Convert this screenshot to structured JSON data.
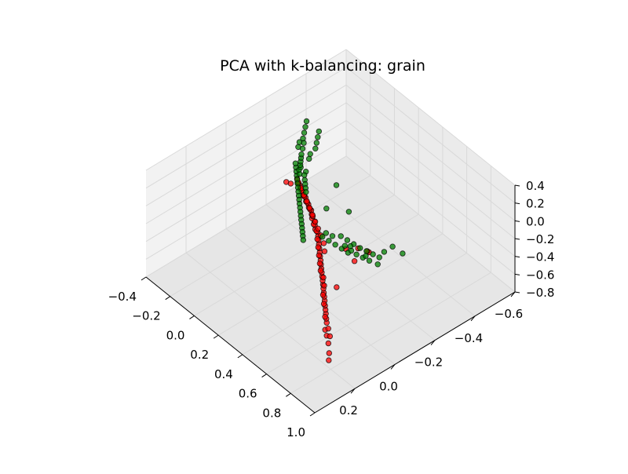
{
  "chart_data": {
    "type": "scatter",
    "projection": "3d",
    "title": "PCA with k-balancing: grain",
    "xlabel": "",
    "ylabel": "",
    "zlabel": "",
    "xlim": [
      -0.4,
      1.0
    ],
    "ylim": [
      -0.6,
      0.4
    ],
    "zlim": [
      -0.8,
      0.4
    ],
    "x_ticks": [
      "−0.4",
      "−0.2",
      "0.0",
      "0.2",
      "0.4",
      "0.6",
      "0.8",
      "1.0"
    ],
    "y_ticks": [
      "−0.6",
      "−0.4",
      "−0.2",
      "0.0",
      "0.2"
    ],
    "z_ticks": [
      "−0.8",
      "−0.6",
      "−0.4",
      "−0.2",
      "0.0",
      "0.2",
      "0.4"
    ],
    "grid": true,
    "series": [
      {
        "color": "#ff0000",
        "points": [
          [
            0.95,
            0.3,
            -0.4
          ],
          [
            0.92,
            0.28,
            -0.38
          ],
          [
            0.88,
            0.26,
            -0.34
          ],
          [
            0.85,
            0.25,
            -0.3
          ],
          [
            0.82,
            0.24,
            -0.28
          ],
          [
            0.8,
            0.22,
            -0.25
          ],
          [
            0.78,
            0.21,
            -0.24
          ],
          [
            0.76,
            0.2,
            -0.22
          ],
          [
            0.74,
            0.19,
            -0.21
          ],
          [
            0.72,
            0.18,
            -0.2
          ],
          [
            0.7,
            0.17,
            -0.18
          ],
          [
            0.68,
            0.16,
            -0.17
          ],
          [
            0.66,
            0.15,
            -0.16
          ],
          [
            0.64,
            0.14,
            -0.15
          ],
          [
            0.62,
            0.13,
            -0.14
          ],
          [
            0.6,
            0.12,
            -0.13
          ],
          [
            0.58,
            0.11,
            -0.12
          ],
          [
            0.56,
            0.1,
            -0.11
          ],
          [
            0.54,
            0.09,
            -0.1
          ],
          [
            0.52,
            0.08,
            -0.09
          ],
          [
            0.5,
            0.07,
            -0.08
          ],
          [
            0.48,
            0.06,
            -0.07
          ],
          [
            0.46,
            0.05,
            -0.06
          ],
          [
            0.44,
            0.04,
            -0.05
          ],
          [
            0.42,
            0.03,
            -0.04
          ],
          [
            0.4,
            0.02,
            -0.03
          ],
          [
            0.38,
            0.01,
            -0.02
          ],
          [
            0.36,
            0.0,
            -0.01
          ],
          [
            0.34,
            0.0,
            0.0
          ],
          [
            0.32,
            -0.01,
            0.01
          ],
          [
            0.3,
            -0.02,
            0.02
          ],
          [
            0.28,
            -0.02,
            0.03
          ],
          [
            0.26,
            -0.03,
            0.04
          ],
          [
            0.24,
            -0.04,
            0.05
          ],
          [
            0.22,
            -0.04,
            0.06
          ],
          [
            0.2,
            -0.05,
            0.06
          ],
          [
            0.18,
            -0.05,
            0.07
          ],
          [
            0.16,
            -0.06,
            0.08
          ],
          [
            0.14,
            -0.06,
            0.08
          ],
          [
            0.12,
            -0.07,
            0.09
          ],
          [
            0.1,
            -0.07,
            0.1
          ],
          [
            0.08,
            -0.08,
            0.1
          ],
          [
            0.06,
            -0.08,
            0.11
          ],
          [
            0.04,
            -0.09,
            0.12
          ],
          [
            0.86,
            0.24,
            -0.31
          ],
          [
            0.83,
            0.23,
            -0.27
          ],
          [
            0.77,
            0.21,
            -0.23
          ],
          [
            0.71,
            0.18,
            -0.19
          ],
          [
            0.67,
            0.16,
            -0.16
          ],
          [
            0.63,
            0.13,
            -0.14
          ],
          [
            0.59,
            0.11,
            -0.12
          ],
          [
            0.55,
            0.1,
            -0.1
          ],
          [
            0.51,
            0.08,
            -0.09
          ],
          [
            0.47,
            0.06,
            -0.07
          ],
          [
            0.43,
            0.04,
            -0.05
          ],
          [
            0.39,
            0.02,
            -0.03
          ],
          [
            0.35,
            0.0,
            -0.01
          ],
          [
            0.31,
            -0.01,
            0.01
          ],
          [
            0.27,
            -0.03,
            0.03
          ],
          [
            0.23,
            -0.04,
            0.05
          ],
          [
            0.19,
            -0.05,
            0.07
          ],
          [
            0.15,
            -0.06,
            0.08
          ],
          [
            0.11,
            -0.07,
            0.09
          ],
          [
            0.07,
            -0.08,
            0.11
          ],
          [
            0.45,
            0.02,
            -0.1
          ],
          [
            0.41,
            0.0,
            -0.08
          ],
          [
            0.37,
            -0.01,
            -0.05
          ],
          [
            0.33,
            -0.02,
            -0.03
          ],
          [
            0.29,
            -0.03,
            -0.01
          ],
          [
            0.25,
            -0.04,
            0.01
          ],
          [
            0.21,
            -0.05,
            0.03
          ],
          [
            0.17,
            -0.06,
            0.05
          ],
          [
            0.13,
            -0.07,
            0.06
          ],
          [
            0.09,
            -0.08,
            0.08
          ],
          [
            0.05,
            -0.09,
            0.09
          ],
          [
            0.3,
            -0.22,
            -0.7
          ],
          [
            0.28,
            -0.25,
            -0.62
          ],
          [
            0.26,
            -0.2,
            -0.58
          ],
          [
            0.32,
            -0.28,
            -0.66
          ],
          [
            0.34,
            -0.26,
            -0.6
          ],
          [
            0.0,
            -0.06,
            0.08
          ],
          [
            0.02,
            -0.07,
            0.07
          ],
          [
            0.6,
            0.05,
            -0.3
          ]
        ]
      },
      {
        "color": "#008000",
        "points": [
          [
            0.02,
            -0.1,
            0.12
          ],
          [
            0.0,
            -0.11,
            0.13
          ],
          [
            -0.02,
            -0.12,
            0.14
          ],
          [
            -0.04,
            -0.13,
            0.15
          ],
          [
            0.04,
            -0.09,
            0.11
          ],
          [
            0.06,
            -0.08,
            0.1
          ],
          [
            0.08,
            -0.07,
            0.09
          ],
          [
            0.1,
            -0.06,
            0.08
          ],
          [
            0.12,
            -0.05,
            0.07
          ],
          [
            0.14,
            -0.04,
            0.06
          ],
          [
            0.16,
            -0.03,
            0.05
          ],
          [
            0.18,
            -0.02,
            0.04
          ],
          [
            0.2,
            -0.01,
            0.03
          ],
          [
            0.22,
            0.0,
            0.02
          ],
          [
            0.24,
            0.01,
            0.01
          ],
          [
            0.26,
            0.02,
            0.0
          ],
          [
            0.28,
            0.03,
            -0.01
          ],
          [
            0.3,
            0.04,
            -0.02
          ],
          [
            0.32,
            0.05,
            -0.03
          ],
          [
            0.34,
            0.06,
            -0.04
          ],
          [
            0.01,
            -0.12,
            0.1
          ],
          [
            -0.01,
            -0.13,
            0.11
          ],
          [
            0.03,
            -0.14,
            0.12
          ],
          [
            0.05,
            -0.12,
            0.13
          ],
          [
            0.07,
            -0.11,
            0.11
          ],
          [
            0.09,
            -0.1,
            0.1
          ],
          [
            0.11,
            -0.09,
            0.09
          ],
          [
            0.13,
            -0.08,
            0.08
          ],
          [
            -0.03,
            -0.15,
            0.09
          ],
          [
            -0.05,
            -0.16,
            0.08
          ],
          [
            -0.08,
            -0.18,
            0.06
          ],
          [
            -0.11,
            -0.2,
            0.04
          ],
          [
            -0.14,
            -0.22,
            0.02
          ],
          [
            -0.18,
            -0.25,
            0.0
          ],
          [
            -0.22,
            -0.28,
            -0.02
          ],
          [
            -0.26,
            -0.3,
            -0.04
          ],
          [
            -0.3,
            -0.33,
            -0.06
          ],
          [
            -0.34,
            -0.36,
            -0.08
          ],
          [
            -0.38,
            -0.39,
            -0.1
          ],
          [
            -0.24,
            -0.35,
            -0.2
          ],
          [
            -0.28,
            -0.38,
            -0.22
          ],
          [
            -0.32,
            -0.41,
            -0.24
          ],
          [
            -0.36,
            -0.44,
            -0.26
          ],
          [
            -0.3,
            -0.3,
            -0.18
          ],
          [
            -0.34,
            -0.33,
            -0.21
          ],
          [
            -0.2,
            -0.3,
            -0.15
          ],
          [
            -0.16,
            -0.27,
            -0.12
          ],
          [
            0.2,
            -0.12,
            -0.4
          ],
          [
            0.22,
            -0.14,
            -0.45
          ],
          [
            0.24,
            -0.16,
            -0.5
          ],
          [
            0.26,
            -0.18,
            -0.55
          ],
          [
            0.28,
            -0.2,
            -0.6
          ],
          [
            0.3,
            -0.23,
            -0.64
          ],
          [
            0.32,
            -0.25,
            -0.68
          ],
          [
            0.34,
            -0.27,
            -0.72
          ],
          [
            0.22,
            -0.2,
            -0.48
          ],
          [
            0.24,
            -0.22,
            -0.53
          ],
          [
            0.26,
            -0.24,
            -0.58
          ],
          [
            0.28,
            -0.26,
            -0.63
          ],
          [
            0.3,
            -0.28,
            -0.67
          ],
          [
            0.32,
            -0.3,
            -0.71
          ],
          [
            0.18,
            -0.15,
            -0.42
          ],
          [
            0.2,
            -0.17,
            -0.46
          ],
          [
            0.34,
            -0.32,
            -0.75
          ],
          [
            0.36,
            -0.3,
            -0.78
          ],
          [
            0.29,
            -0.21,
            -0.58
          ],
          [
            0.27,
            -0.19,
            -0.52
          ],
          [
            0.25,
            -0.23,
            -0.6
          ],
          [
            0.31,
            -0.27,
            -0.7
          ],
          [
            0.33,
            -0.35,
            -0.74
          ],
          [
            0.35,
            -0.38,
            -0.7
          ],
          [
            0.1,
            -0.2,
            -0.3
          ],
          [
            0.12,
            -0.3,
            -0.45
          ],
          [
            0.4,
            -0.4,
            -0.75
          ],
          [
            0.05,
            -0.28,
            -0.2
          ]
        ]
      }
    ]
  }
}
